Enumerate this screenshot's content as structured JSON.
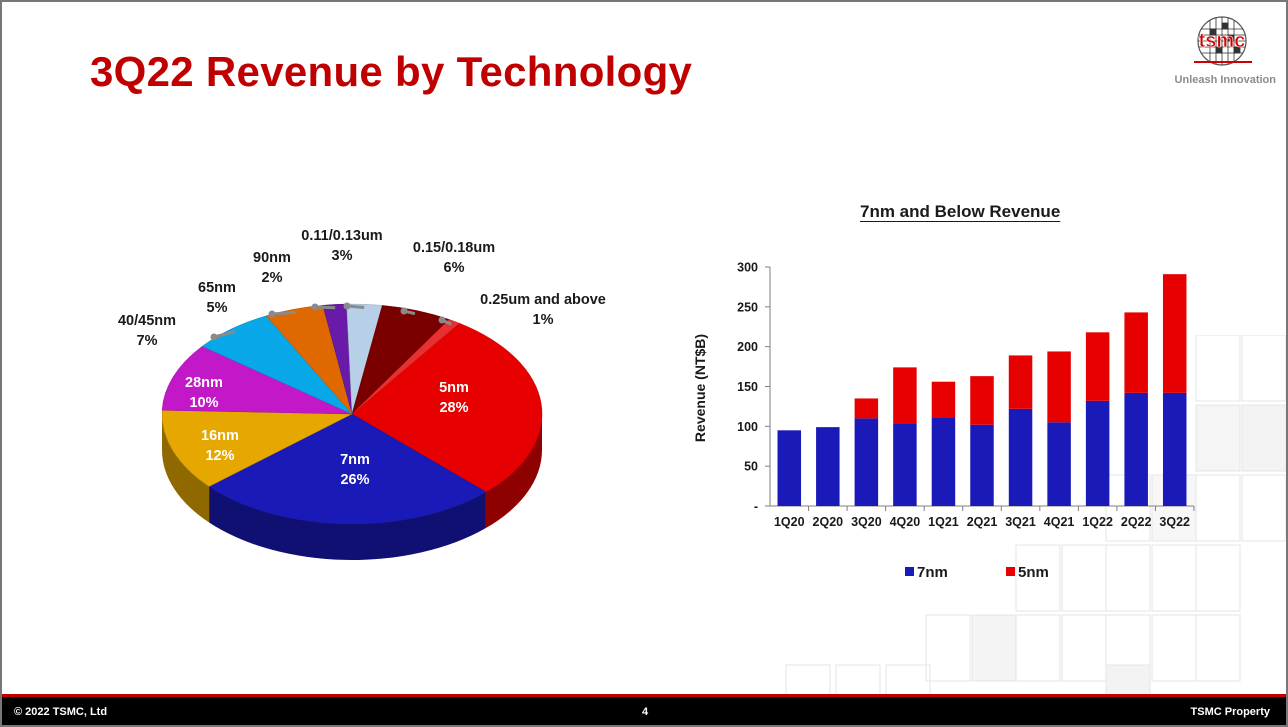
{
  "slide": {
    "title": "3Q22 Revenue by Technology",
    "logo_text": "tsmc",
    "tagline": "Unleash Innovation"
  },
  "chart_data": [
    {
      "type": "pie",
      "title": "",
      "slices": [
        {
          "label": "5nm",
          "value": 28,
          "pct": "28%",
          "color": "#e60000"
        },
        {
          "label": "7nm",
          "value": 26,
          "pct": "26%",
          "color": "#1a1ab8"
        },
        {
          "label": "16nm",
          "value": 12,
          "pct": "12%",
          "color": "#e6a800"
        },
        {
          "label": "28nm",
          "value": 10,
          "pct": "10%",
          "color": "#c218c8"
        },
        {
          "label": "40/45nm",
          "value": 7,
          "pct": "7%",
          "color": "#08a8e8"
        },
        {
          "label": "65nm",
          "value": 5,
          "pct": "5%",
          "color": "#e06800"
        },
        {
          "label": "90nm",
          "value": 2,
          "pct": "2%",
          "color": "#6a1aa8"
        },
        {
          "label": "0.11/0.13um",
          "value": 3,
          "pct": "3%",
          "color": "#b8cfe8"
        },
        {
          "label": "0.15/0.18um",
          "value": 6,
          "pct": "6%",
          "color": "#7a0000"
        },
        {
          "label": "0.25um and above",
          "value": 1,
          "pct": "1%",
          "color": "#e83030"
        }
      ]
    },
    {
      "type": "bar",
      "stacked": true,
      "title": "7nm and Below Revenue",
      "ylabel": "Revenue (NT$B)",
      "ylim": [
        0,
        300
      ],
      "yticks": [
        "-",
        "50",
        "100",
        "150",
        "200",
        "250",
        "300"
      ],
      "categories": [
        "1Q20",
        "2Q20",
        "3Q20",
        "4Q20",
        "1Q21",
        "2Q21",
        "3Q21",
        "4Q21",
        "1Q22",
        "2Q22",
        "3Q22"
      ],
      "series": [
        {
          "name": "7nm",
          "color": "#1a1ab8",
          "values": [
            95,
            99,
            110,
            104,
            111,
            102,
            122,
            105,
            132,
            142,
            142
          ]
        },
        {
          "name": "5nm",
          "color": "#e60000",
          "values": [
            0,
            0,
            25,
            70,
            45,
            61,
            67,
            89,
            86,
            101,
            149
          ]
        }
      ],
      "legend": "bottom"
    }
  ],
  "footer": {
    "copyright": "©  2022 TSMC, Ltd",
    "page": "4",
    "property": "TSMC Property"
  }
}
